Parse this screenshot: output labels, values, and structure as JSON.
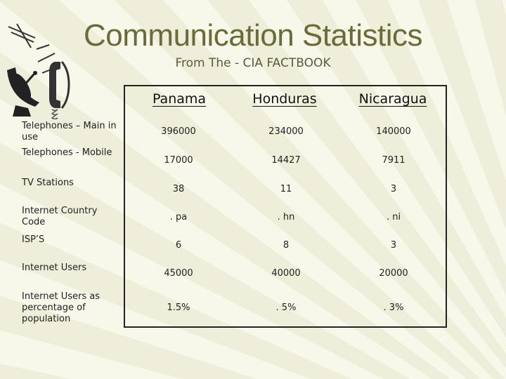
{
  "slide": {
    "title": "Communication Statistics",
    "subtitle": "From The - CIA FACTBOOK"
  },
  "table": {
    "columns": [
      "Panama",
      "Honduras",
      "Nicaragua"
    ],
    "rows": [
      {
        "label": "Telephones – Main in use",
        "values": [
          "396000",
          "234000",
          "140000"
        ]
      },
      {
        "label": "Telephones - Mobile",
        "values": [
          "17000",
          "14427",
          "7911"
        ]
      },
      {
        "label": "TV Stations",
        "values": [
          "38",
          "11",
          "3"
        ]
      },
      {
        "label": "Internet Country Code",
        "values": [
          ". pa",
          ". hn",
          ". ni"
        ]
      },
      {
        "label": "ISP’S",
        "values": [
          "6",
          "8",
          "3"
        ]
      },
      {
        "label": "Internet Users",
        "values": [
          "45000",
          "40000",
          "20000"
        ]
      },
      {
        "label": "Internet Users as percentage of population",
        "values": [
          "1.5%",
          ". 5%",
          ". 3%"
        ]
      }
    ]
  },
  "icons": {
    "logo": "satellite-telephone-icon"
  }
}
